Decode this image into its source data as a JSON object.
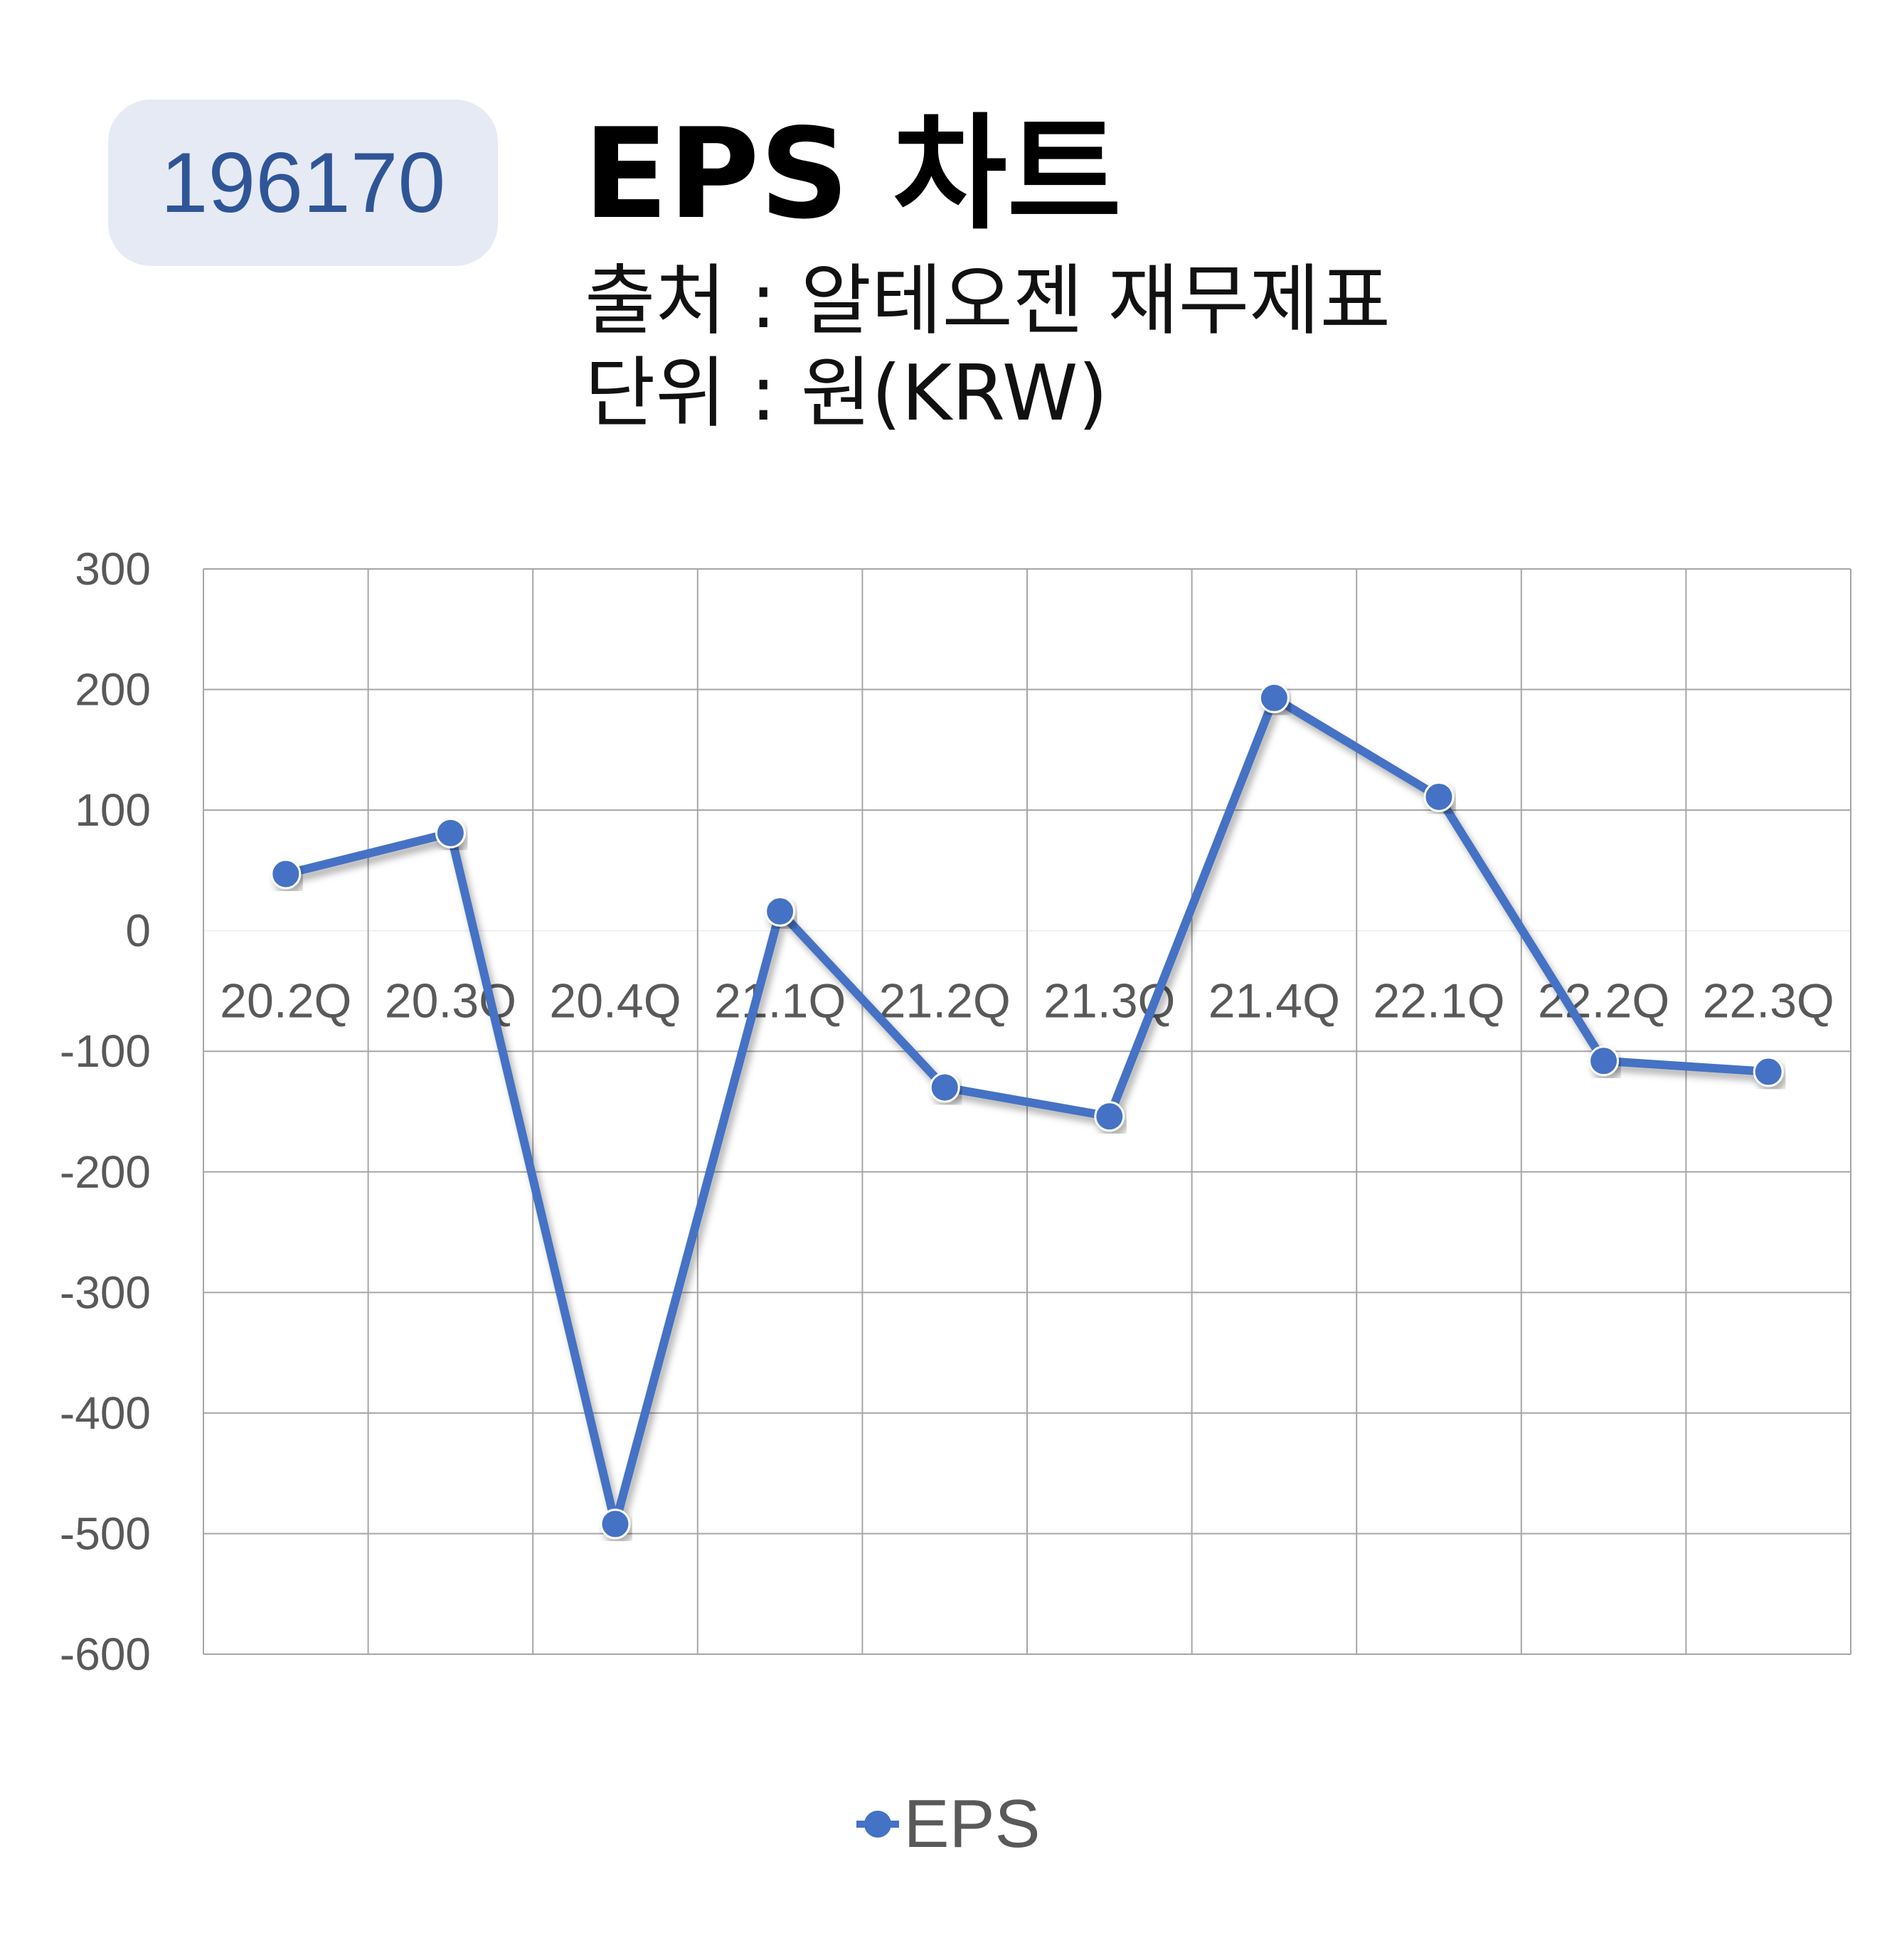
{
  "header": {
    "code": "196170",
    "title": "EPS 차트",
    "source": "출처 : 알테오젠 재무제표",
    "unit": "단위 : 원(KRW)"
  },
  "chart_data": {
    "type": "line",
    "categories": [
      "20.2Q",
      "20.3Q",
      "20.4Q",
      "21.1Q",
      "21.2Q",
      "21.3Q",
      "21.4Q",
      "22.1Q",
      "22.2Q",
      "22.3Q"
    ],
    "series": [
      {
        "name": "EPS",
        "values": [
          47,
          81,
          -492,
          16,
          -130,
          -154,
          193,
          111,
          -108,
          -117
        ],
        "color": "#4472c4"
      }
    ],
    "ylim": [
      -600,
      300
    ],
    "yticks": [
      300,
      200,
      100,
      0,
      -100,
      -200,
      -300,
      -400,
      -500,
      -600
    ],
    "grid": true,
    "legend": "bottom"
  }
}
